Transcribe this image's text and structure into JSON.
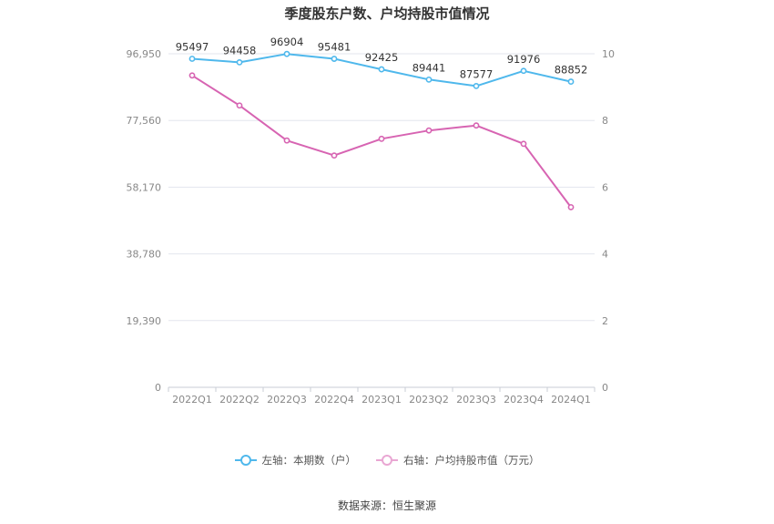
{
  "title": "季度股东户数、户均持股市值情况",
  "source": "数据来源：恒生聚源",
  "colors": {
    "left": "#4FB8EC",
    "right": "#D764B2",
    "grid": "#E3E6EE",
    "tick": "#888888"
  },
  "legend": {
    "left": "左轴：本期数（户）",
    "right": "右轴：户均持股市值（万元）"
  },
  "chart_data": {
    "type": "line",
    "categories": [
      "2022Q1",
      "2022Q2",
      "2022Q3",
      "2022Q4",
      "2023Q1",
      "2023Q2",
      "2023Q3",
      "2023Q4",
      "2024Q1"
    ],
    "left_axis": {
      "ticks": [
        0,
        19390,
        38780,
        58170,
        77560,
        96950
      ],
      "tick_labels": [
        "0",
        "19,390",
        "38,780",
        "58,170",
        "77,560",
        "96,950"
      ],
      "ylim": [
        0,
        96950
      ]
    },
    "right_axis": {
      "ticks": [
        0,
        2,
        4,
        6,
        8,
        10
      ],
      "tick_labels": [
        "0",
        "2",
        "4",
        "6",
        "8",
        "10"
      ],
      "ylim": [
        0,
        10
      ]
    },
    "series": [
      {
        "name": "左轴：本期数（户）",
        "axis": "left",
        "values": [
          95497,
          94458,
          96904,
          95481,
          92425,
          89441,
          87577,
          91976,
          88852
        ],
        "labels": [
          "95497",
          "94458",
          "96904",
          "95481",
          "92425",
          "89441",
          "87577",
          "91976",
          "88852"
        ]
      },
      {
        "name": "右轴：户均持股市值（万元）",
        "axis": "right",
        "values": [
          9.35,
          8.45,
          7.4,
          6.95,
          7.45,
          7.7,
          7.85,
          7.3,
          5.4
        ]
      }
    ],
    "grid": true,
    "legend_position": "bottom"
  }
}
